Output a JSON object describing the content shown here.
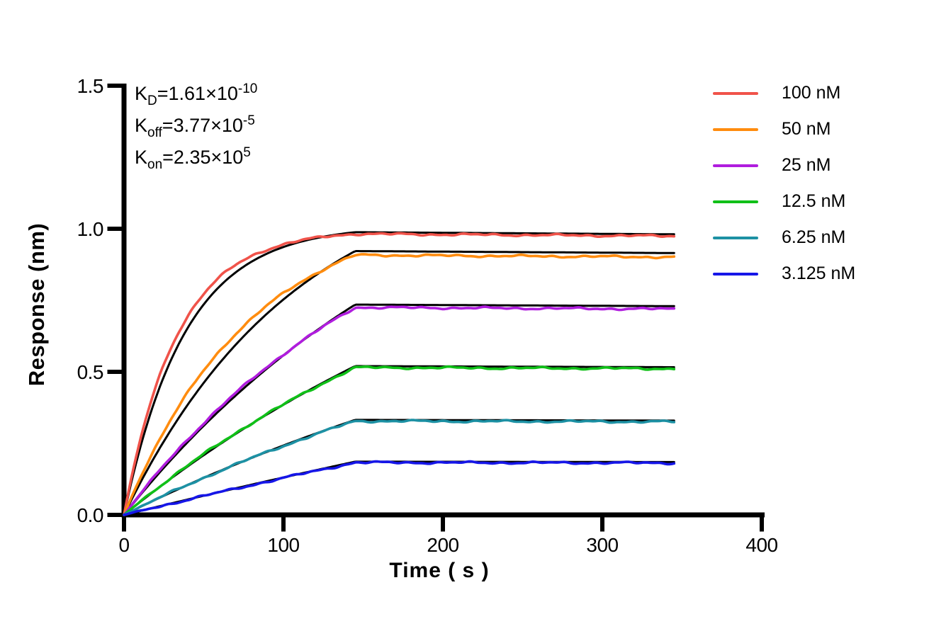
{
  "figure": {
    "background_color": "#FFFFFF",
    "axis_color": "#000000"
  },
  "chart_data": {
    "type": "line",
    "title": "",
    "xlabel": "Time ( s )",
    "ylabel": "Response (nm)",
    "xlim": [
      0,
      400
    ],
    "ylim": [
      0,
      1.5
    ],
    "x_ticks": [
      0,
      100,
      200,
      300,
      400
    ],
    "x_tick_labels": [
      "0",
      "100",
      "200",
      "300",
      "400"
    ],
    "y_ticks": [
      0,
      0.5,
      1,
      1.5
    ],
    "y_tick_labels": [
      "0.0",
      "0.5",
      "1.0",
      "1.5"
    ],
    "grid": false,
    "legend_position": "top-right",
    "fit_line_color": "#000000",
    "association_end_s": 145,
    "run_end_s": 345,
    "k_off_per_s": 3.77e-05,
    "kinetics": [
      {
        "name": "KD",
        "base": "K",
        "sub": "D",
        "body": "=1.61×10",
        "exp": "-10"
      },
      {
        "name": "Koff",
        "base": "K",
        "sub": "off",
        "body": "=3.77×10",
        "exp": "-5"
      },
      {
        "name": "Kon",
        "base": "K",
        "sub": "on",
        "body": "=2.35×10",
        "exp": "5"
      }
    ],
    "series": [
      {
        "label": "100 nM",
        "concentration_nM": 100,
        "color": "#F0534A",
        "plateau_nm": 0.982,
        "fit_plateau_nm": 0.988,
        "k_obs": 0.03,
        "k_fit": 0.026
      },
      {
        "label": "50 nM",
        "concentration_nM": 50,
        "color": "#FF8C0F",
        "plateau_nm": 0.908,
        "fit_plateau_nm": 0.922,
        "k_obs": 0.0125,
        "k_fit": 0.0092
      },
      {
        "label": "25 nM",
        "concentration_nM": 25,
        "color": "#B01DDE",
        "plateau_nm": 0.725,
        "fit_plateau_nm": 0.735,
        "k_obs": 0.0058,
        "k_fit": 0.0047
      },
      {
        "label": "12.5 nM",
        "concentration_nM": 12.5,
        "color": "#10C018",
        "plateau_nm": 0.515,
        "fit_plateau_nm": 0.52,
        "k_obs": 0.004,
        "k_fit": 0.0034
      },
      {
        "label": "6.25 nM",
        "concentration_nM": 6.25,
        "color": "#1D91A4",
        "plateau_nm": 0.328,
        "fit_plateau_nm": 0.332,
        "k_obs": 0.003,
        "k_fit": 0.0027
      },
      {
        "label": "3.125 nM",
        "concentration_nM": 3.125,
        "color": "#1616E8",
        "plateau_nm": 0.183,
        "fit_plateau_nm": 0.186,
        "k_obs": 0.001,
        "k_fit": 0.0009
      }
    ]
  }
}
